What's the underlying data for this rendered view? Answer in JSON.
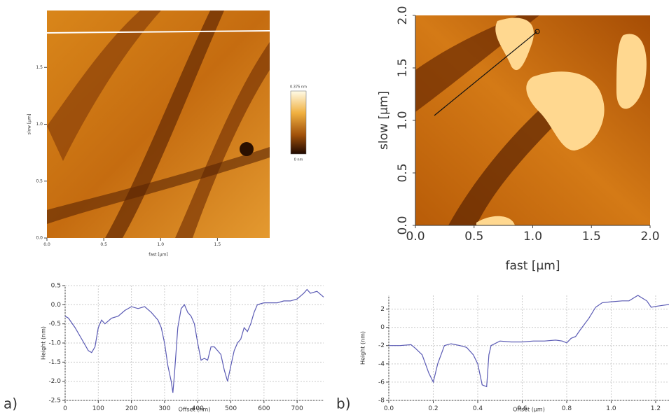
{
  "chart_data": [
    {
      "type": "image",
      "xlabel": "fast [µm]",
      "ylabel": "slow [µm]",
      "xlim": [
        0,
        1.96
      ],
      "ylim": [
        0,
        2
      ],
      "xticks": [
        {
          "value": 0,
          "label": "0.0"
        },
        0.5,
        {
          "value": 1,
          "label": "1.0"
        },
        1.5
      ],
      "yticks": [
        {
          "value": 0,
          "label": "0.0"
        },
        0.5,
        {
          "value": 1,
          "label": "1.0"
        },
        1.5
      ],
      "colorbar_labels": [
        "0.375 nm",
        "0 nm"
      ]
    },
    {
      "type": "line",
      "xlabel": "Offset (nm)",
      "ylabel": "Height (nm)",
      "panel_label": "a)",
      "color": "#5a5ab4",
      "grid": true,
      "xlim": [
        0,
        780
      ],
      "ylim": [
        -2.5,
        0.5
      ],
      "xticks": [
        0,
        100,
        200,
        300,
        400,
        500,
        600,
        700
      ],
      "yticks": [
        -2.5,
        {
          "value": -2,
          "label": "-2.0"
        },
        -1.5,
        {
          "value": -1,
          "label": "-1.0"
        },
        -0.5,
        {
          "value": 0,
          "label": "0.0"
        },
        0.5
      ],
      "x": [
        0,
        10,
        30,
        50,
        70,
        80,
        90,
        100,
        110,
        120,
        140,
        160,
        180,
        200,
        220,
        240,
        260,
        280,
        290,
        300,
        310,
        320,
        325,
        330,
        340,
        350,
        360,
        370,
        380,
        390,
        400,
        410,
        420,
        430,
        440,
        450,
        460,
        470,
        480,
        490,
        500,
        510,
        520,
        530,
        540,
        550,
        560,
        570,
        580,
        600,
        620,
        640,
        660,
        680,
        700,
        720,
        730,
        740,
        760,
        780
      ],
      "values": [
        -0.3,
        -0.35,
        -0.6,
        -0.9,
        -1.2,
        -1.25,
        -1.1,
        -0.6,
        -0.4,
        -0.5,
        -0.35,
        -0.3,
        -0.15,
        -0.05,
        -0.1,
        -0.05,
        -0.2,
        -0.4,
        -0.6,
        -1.0,
        -1.6,
        -2.0,
        -2.3,
        -1.8,
        -0.6,
        -0.1,
        0.0,
        -0.2,
        -0.3,
        -0.5,
        -1.0,
        -1.45,
        -1.4,
        -1.45,
        -1.1,
        -1.1,
        -1.2,
        -1.3,
        -1.7,
        -2.0,
        -1.6,
        -1.2,
        -1.0,
        -0.9,
        -0.6,
        -0.7,
        -0.5,
        -0.2,
        0.0,
        0.05,
        0.05,
        0.05,
        0.1,
        0.1,
        0.15,
        0.3,
        0.4,
        0.3,
        0.35,
        0.2
      ]
    },
    {
      "type": "image",
      "xlabel": "fast [µm]",
      "ylabel": "slow [µm]",
      "xlim": [
        0,
        2
      ],
      "ylim": [
        0,
        2
      ],
      "xticks": [
        {
          "value": 0,
          "label": "0.0"
        },
        0.5,
        {
          "value": 1,
          "label": "1.0"
        },
        1.5,
        {
          "value": 2,
          "label": "2.0"
        }
      ],
      "yticks": [
        {
          "value": 0,
          "label": "0.0"
        },
        0.5,
        {
          "value": 1,
          "label": "1.0"
        },
        1.5,
        {
          "value": 2,
          "label": "2.0"
        }
      ]
    },
    {
      "type": "line",
      "xlabel": "Offset (µm)",
      "ylabel": "Height (nm)",
      "panel_label": "b)",
      "color": "#5a5ab4",
      "grid": true,
      "xlim": [
        0,
        1.26
      ],
      "ylim": [
        -8,
        3.5
      ],
      "xticks": [
        {
          "value": 0,
          "label": "0.0"
        },
        0.2,
        0.4,
        0.6,
        0.8,
        {
          "value": 1,
          "label": "1.0"
        },
        1.2
      ],
      "yticks": [
        -8,
        -6,
        -4,
        -2,
        0,
        2
      ],
      "x": [
        0,
        0.05,
        0.1,
        0.12,
        0.15,
        0.18,
        0.2,
        0.22,
        0.25,
        0.28,
        0.32,
        0.35,
        0.38,
        0.4,
        0.42,
        0.44,
        0.45,
        0.46,
        0.5,
        0.55,
        0.6,
        0.65,
        0.7,
        0.75,
        0.78,
        0.8,
        0.82,
        0.84,
        0.86,
        0.9,
        0.93,
        0.96,
        1.0,
        1.05,
        1.08,
        1.1,
        1.12,
        1.14,
        1.16,
        1.18,
        1.2,
        1.23,
        1.26
      ],
      "values": [
        -2,
        -2,
        -1.9,
        -2.3,
        -3,
        -5,
        -6,
        -4,
        -2,
        -1.8,
        -2,
        -2.2,
        -3,
        -4,
        -6.3,
        -6.5,
        -3,
        -2,
        -1.5,
        -1.6,
        -1.6,
        -1.5,
        -1.5,
        -1.4,
        -1.5,
        -1.7,
        -1.2,
        -1.0,
        -0.3,
        1.0,
        2.2,
        2.7,
        2.8,
        2.9,
        2.9,
        3.2,
        3.5,
        3.2,
        2.9,
        2.2,
        2.3,
        2.4,
        2.5
      ]
    }
  ]
}
